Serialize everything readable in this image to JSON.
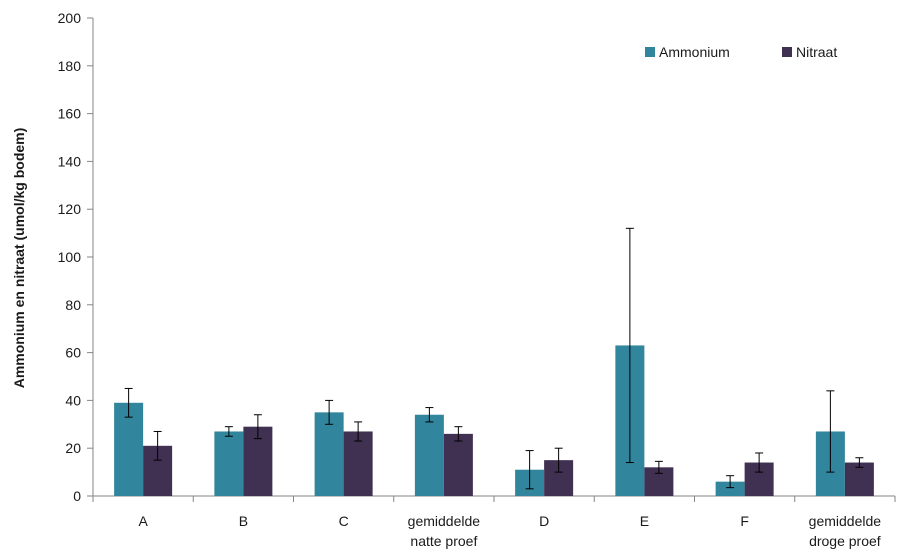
{
  "chart_data": {
    "type": "bar",
    "categories": [
      [
        "A"
      ],
      [
        "B"
      ],
      [
        "C"
      ],
      [
        "gemiddelde",
        "natte proef"
      ],
      [
        "D"
      ],
      [
        "E"
      ],
      [
        "F"
      ],
      [
        "gemiddelde",
        "droge proef"
      ]
    ],
    "series": [
      {
        "name": "Ammonium",
        "color": "#31859c",
        "values": [
          39,
          27,
          35,
          34,
          11,
          63,
          6,
          27
        ],
        "error": [
          6,
          2,
          5,
          3,
          8,
          49,
          2.5,
          17
        ]
      },
      {
        "name": "Nitraat",
        "color": "#403152",
        "values": [
          21,
          29,
          27,
          26,
          15,
          12,
          14,
          14
        ],
        "error": [
          6,
          5,
          4,
          3,
          5,
          2.5,
          4,
          2
        ]
      }
    ],
    "ylabel": "Ammonium en nitraat (umol/kg bodem)",
    "xlabel": "",
    "title": "",
    "ylim": [
      0,
      200
    ],
    "yticks": [
      0,
      20,
      40,
      60,
      80,
      100,
      120,
      140,
      160,
      180,
      200
    ],
    "legend_position": "top-right",
    "grid": false
  }
}
